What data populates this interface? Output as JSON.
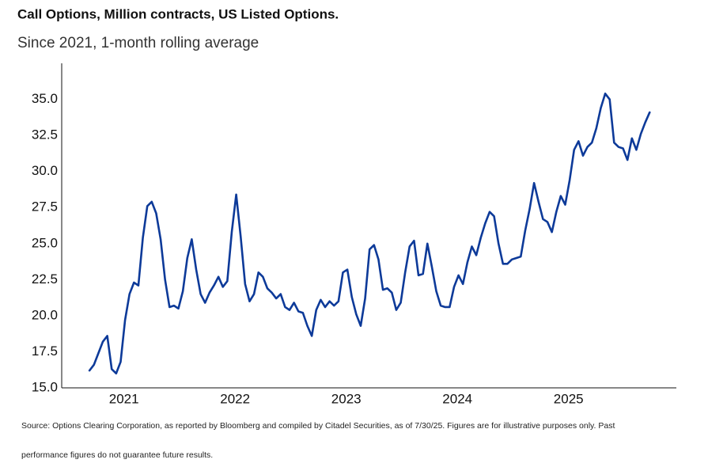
{
  "chart_data": {
    "type": "line",
    "title": "Call Options, Million contracts, US Listed Options.",
    "subtitle": "Since 2021, 1-month rolling average",
    "footnote": [
      "Source: Options Clearing Corporation, as reported by Bloomberg and compiled by Citadel Securities, as of 7/30/25. Figures are for illustrative purposes only. Past",
      "performance figures do not guarantee future results."
    ],
    "xlim": [
      2020.44,
      2025.97
    ],
    "xticks": [
      2021,
      2022,
      2023,
      2024,
      2025
    ],
    "ylim": [
      15,
      37.5
    ],
    "yticks": [
      {
        "value": 15,
        "label": "15.0"
      },
      {
        "value": 17.5,
        "label": "17.5"
      },
      {
        "value": 20,
        "label": "20.0"
      },
      {
        "value": 22.5,
        "label": "22.5"
      },
      {
        "value": 25,
        "label": "25.0"
      },
      {
        "value": 27.5,
        "label": "27.5"
      },
      {
        "value": 30,
        "label": "30.0"
      },
      {
        "value": 32.5,
        "label": "32.5"
      },
      {
        "value": 35,
        "label": "35.0"
      }
    ],
    "grid": false,
    "x": [
      2020.69,
      2020.73,
      2020.77,
      2020.81,
      2020.85,
      2020.89,
      2020.93,
      2020.97,
      2021.01,
      2021.05,
      2021.09,
      2021.13,
      2021.17,
      2021.21,
      2021.25,
      2021.29,
      2021.33,
      2021.37,
      2021.41,
      2021.45,
      2021.49,
      2021.53,
      2021.57,
      2021.61,
      2021.65,
      2021.69,
      2021.73,
      2021.77,
      2021.81,
      2021.85,
      2021.89,
      2021.93,
      2021.97,
      2022.01,
      2022.05,
      2022.09,
      2022.13,
      2022.17,
      2022.21,
      2022.25,
      2022.29,
      2022.33,
      2022.37,
      2022.41,
      2022.45,
      2022.49,
      2022.53,
      2022.57,
      2022.61,
      2022.65,
      2022.69,
      2022.73,
      2022.77,
      2022.81,
      2022.85,
      2022.89,
      2022.93,
      2022.97,
      2023.01,
      2023.05,
      2023.09,
      2023.13,
      2023.17,
      2023.21,
      2023.25,
      2023.29,
      2023.33,
      2023.37,
      2023.41,
      2023.45,
      2023.49,
      2023.53,
      2023.57,
      2023.61,
      2023.65,
      2023.69,
      2023.73,
      2023.77,
      2023.81,
      2023.85,
      2023.89,
      2023.93,
      2023.97,
      2024.01,
      2024.05,
      2024.09,
      2024.13,
      2024.17,
      2024.21,
      2024.25,
      2024.29,
      2024.33,
      2024.37,
      2024.41,
      2024.45,
      2024.49,
      2024.53,
      2024.57,
      2024.61,
      2024.65,
      2024.69,
      2024.73,
      2024.77,
      2024.81,
      2024.85,
      2024.89,
      2024.93,
      2024.97,
      2025.01,
      2025.05,
      2025.09,
      2025.13,
      2025.17,
      2025.21,
      2025.25,
      2025.29,
      2025.33,
      2025.37,
      2025.41,
      2025.45,
      2025.49,
      2025.53,
      2025.57,
      2025.61,
      2025.65,
      2025.69,
      2025.73
    ],
    "series": [
      {
        "name": "Call Options",
        "color": "#0d3a99",
        "values": [
          16.2,
          16.6,
          17.4,
          18.2,
          18.6,
          16.3,
          16.0,
          16.8,
          19.7,
          21.5,
          22.3,
          22.1,
          25.4,
          27.6,
          27.9,
          27.1,
          25.3,
          22.5,
          20.6,
          20.7,
          20.5,
          21.7,
          24.0,
          25.3,
          23.2,
          21.5,
          20.9,
          21.6,
          22.1,
          22.7,
          22.0,
          22.4,
          25.8,
          28.4,
          25.5,
          22.2,
          21.0,
          21.5,
          23.0,
          22.7,
          21.9,
          21.6,
          21.2,
          21.5,
          20.6,
          20.4,
          20.9,
          20.3,
          20.2,
          19.3,
          18.6,
          20.4,
          21.1,
          20.6,
          21.0,
          20.7,
          21.0,
          23.0,
          23.2,
          21.3,
          20.1,
          19.3,
          21.2,
          24.6,
          24.9,
          23.9,
          21.8,
          21.9,
          21.6,
          20.4,
          20.9,
          23.0,
          24.8,
          25.2,
          22.8,
          22.9,
          25.0,
          23.4,
          21.7,
          20.7,
          20.6,
          20.6,
          22.0,
          22.8,
          22.2,
          23.7,
          24.8,
          24.2,
          25.4,
          26.4,
          27.2,
          26.9,
          25.0,
          23.6,
          23.6,
          23.9,
          24.0,
          24.1,
          25.9,
          27.4,
          29.2,
          27.9,
          26.7,
          26.5,
          25.8,
          27.2,
          28.3,
          27.7,
          29.4,
          31.5,
          32.1,
          31.1,
          31.7,
          32.0,
          33.0,
          34.4,
          35.4,
          35.0,
          32.0,
          31.7,
          31.6,
          30.8,
          32.3,
          31.5,
          32.6,
          33.4,
          34.1
        ]
      }
    ]
  }
}
